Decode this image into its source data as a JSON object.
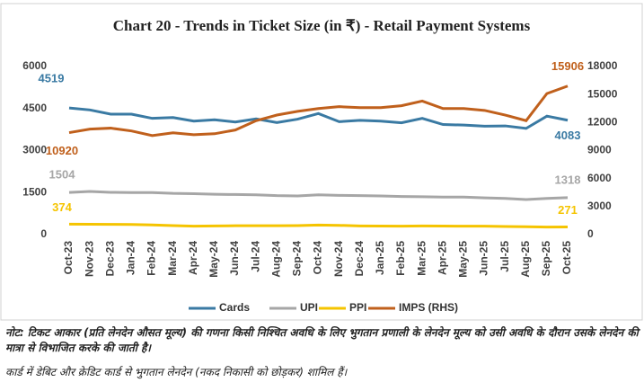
{
  "chart_data": {
    "type": "line",
    "title": "Chart 20 - Trends in Ticket Size (in ₹) - Retail Payment Systems",
    "categories": [
      "Oct-23",
      "Nov-23",
      "Dec-23",
      "Jan-24",
      "Feb-24",
      "Mar-24",
      "Apr-24",
      "May-24",
      "Jun-24",
      "Jul-24",
      "Aug-24",
      "Sep-24",
      "Oct-24",
      "Nov-24",
      "Dec-24",
      "Jan-25",
      "Feb-25",
      "Mar-25",
      "Apr-25",
      "May-25",
      "Jun-25",
      "Jul-25",
      "Aug-25",
      "Sep-25",
      "Oct-25"
    ],
    "series": [
      {
        "name": "Cards",
        "color": "#3a7aa3",
        "values": [
          4519,
          4450,
          4300,
          4300,
          4150,
          4180,
          4050,
          4100,
          4020,
          4130,
          4000,
          4120,
          4320,
          4030,
          4080,
          4050,
          3990,
          4150,
          3930,
          3910,
          3870,
          3880,
          3790,
          4230,
          4083
        ]
      },
      {
        "name": "UPI",
        "color": "#a6a6a6",
        "values": [
          1504,
          1540,
          1510,
          1500,
          1500,
          1470,
          1460,
          1440,
          1430,
          1420,
          1390,
          1380,
          1420,
          1400,
          1390,
          1380,
          1360,
          1350,
          1340,
          1340,
          1310,
          1290,
          1250,
          1290,
          1318
        ]
      },
      {
        "name": "PPI",
        "color": "#f5c400",
        "values": [
          374,
          370,
          365,
          360,
          345,
          320,
          300,
          310,
          315,
          315,
          315,
          320,
          340,
          330,
          310,
          305,
          300,
          310,
          305,
          300,
          300,
          290,
          280,
          270,
          271
        ]
      },
      {
        "name": "IMPS (RHS)",
        "color": "#c0601c",
        "axis": "y2",
        "values": [
          10920,
          11300,
          11400,
          11100,
          10600,
          10900,
          10700,
          10800,
          11200,
          12200,
          12800,
          13200,
          13500,
          13700,
          13600,
          13600,
          13800,
          14300,
          13500,
          13500,
          13300,
          12800,
          12200,
          15100,
          15906
        ]
      }
    ],
    "ylim": [
      0,
      6000
    ],
    "yticks": [
      0,
      1500,
      3000,
      4500,
      6000
    ],
    "y2lim": [
      0,
      18000
    ],
    "y2ticks": [
      0,
      3000,
      6000,
      9000,
      12000,
      15000,
      18000
    ],
    "grid": false,
    "legend": "bottom"
  },
  "notes": [
    "नोट: टिकट आकार (प्रति लेनदेन औसत मूल्य) की गणना किसी निश्चित अवधि के लिए भुगतान प्रणाली के लेनदेन मूल्य को उसी अवधि के दौरान उसके लेनदेन की मात्रा से विभाजित करके की जाती है।",
    "कार्ड में डेबिट और क्रेडिट कार्ड से भुगतान लेनदेन (नकद निकासी को छोड़कर) शामिल हैं।"
  ]
}
